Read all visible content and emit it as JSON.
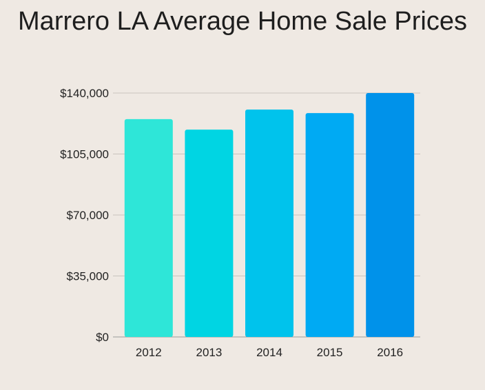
{
  "title": "Marrero LA Average Home Sale Prices",
  "chart_data": {
    "type": "bar",
    "title": "Marrero LA Average Home Sale Prices",
    "categories": [
      "2012",
      "2013",
      "2014",
      "2015",
      "2016"
    ],
    "values": [
      125000,
      119000,
      130500,
      128500,
      140000
    ],
    "bar_colors": [
      "#2ee6d8",
      "#00d5e3",
      "#00c3ec",
      "#00aaf3",
      "#0092ea"
    ],
    "ylim": [
      0,
      140000
    ],
    "yticks": [
      0,
      35000,
      70000,
      105000,
      140000
    ],
    "ytick_labels": [
      "$0",
      "$35,000",
      "$70,000",
      "$105,000",
      "$140,000"
    ],
    "grid": true,
    "xlabel": "",
    "ylabel": ""
  }
}
